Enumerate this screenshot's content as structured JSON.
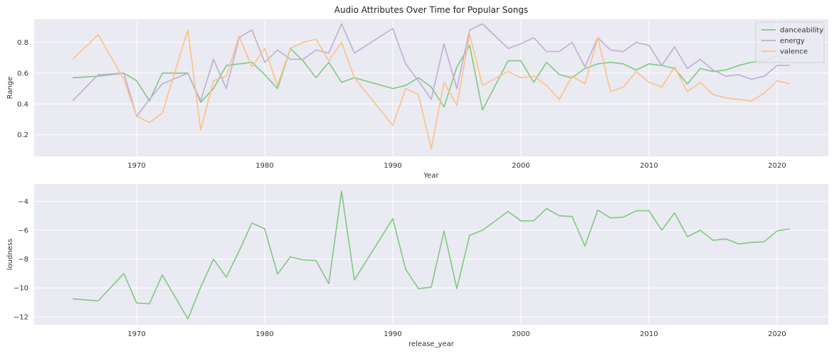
{
  "chart_data": [
    {
      "type": "line",
      "title": "Audio Attributes Over Time for Popular Songs",
      "xlabel": "Year",
      "ylabel": "Range",
      "xlim": [
        1962,
        2024
      ],
      "ylim": [
        0.06,
        0.95
      ],
      "xticks": [
        1970,
        1980,
        1990,
        2000,
        2010,
        2020
      ],
      "yticks": [
        0.2,
        0.4,
        0.6,
        0.8
      ],
      "grid": true,
      "legend": "top-right",
      "x": [
        1965,
        1967,
        1969,
        1970,
        1971,
        1972,
        1974,
        1975,
        1976,
        1977,
        1978,
        1979,
        1980,
        1981,
        1982,
        1983,
        1984,
        1985,
        1986,
        1987,
        1990,
        1991,
        1992,
        1993,
        1994,
        1995,
        1996,
        1997,
        1999,
        2000,
        2001,
        2002,
        2003,
        2004,
        2005,
        2006,
        2007,
        2008,
        2009,
        2010,
        2011,
        2012,
        2013,
        2014,
        2015,
        2016,
        2017,
        2018,
        2019,
        2020,
        2021
      ],
      "series": [
        {
          "name": "danceability",
          "color": "#7fc97f",
          "values": [
            0.57,
            0.58,
            0.6,
            0.55,
            0.42,
            0.6,
            0.6,
            0.41,
            0.5,
            0.65,
            0.66,
            0.67,
            0.59,
            0.5,
            0.76,
            0.68,
            0.57,
            0.67,
            0.54,
            0.57,
            0.5,
            0.52,
            0.57,
            0.51,
            0.38,
            0.64,
            0.78,
            0.36,
            0.68,
            0.68,
            0.54,
            0.67,
            0.59,
            0.57,
            0.63,
            0.66,
            0.67,
            0.66,
            0.62,
            0.66,
            0.65,
            0.63,
            0.53,
            0.63,
            0.61,
            0.62,
            0.65,
            0.67,
            0.68,
            0.71,
            0.69
          ]
        },
        {
          "name": "energy",
          "color": "#beaed4",
          "values": [
            0.42,
            0.59,
            0.6,
            0.32,
            0.43,
            0.53,
            0.6,
            0.42,
            0.69,
            0.5,
            0.83,
            0.88,
            0.67,
            0.75,
            0.69,
            0.69,
            0.75,
            0.73,
            0.92,
            0.73,
            0.89,
            0.66,
            0.55,
            0.43,
            0.79,
            0.5,
            0.88,
            0.92,
            0.76,
            0.79,
            0.83,
            0.74,
            0.74,
            0.8,
            0.64,
            0.83,
            0.75,
            0.74,
            0.8,
            0.78,
            0.65,
            0.77,
            0.63,
            0.69,
            0.62,
            0.58,
            0.59,
            0.56,
            0.58,
            0.65,
            0.65
          ]
        },
        {
          "name": "valence",
          "color": "#fdc086",
          "values": [
            0.69,
            0.85,
            0.56,
            0.32,
            0.28,
            0.34,
            0.88,
            0.23,
            0.55,
            0.58,
            0.84,
            0.64,
            0.76,
            0.52,
            0.76,
            0.8,
            0.82,
            0.68,
            0.8,
            0.57,
            0.26,
            0.5,
            0.46,
            0.11,
            0.54,
            0.39,
            0.85,
            0.52,
            0.61,
            0.57,
            0.58,
            0.52,
            0.43,
            0.58,
            0.53,
            0.83,
            0.48,
            0.51,
            0.61,
            0.54,
            0.51,
            0.64,
            0.48,
            0.54,
            0.46,
            0.44,
            0.43,
            0.42,
            0.47,
            0.55,
            0.53
          ]
        }
      ]
    },
    {
      "type": "line",
      "title": "",
      "xlabel": "release_year",
      "ylabel": "loudness",
      "xlim": [
        1962,
        2024
      ],
      "ylim": [
        -12.55,
        -2.8
      ],
      "xticks": [
        1970,
        1980,
        1990,
        2000,
        2010,
        2020
      ],
      "yticks": [
        -12,
        -10,
        -8,
        -6,
        -4
      ],
      "grid": true,
      "x": [
        1965,
        1967,
        1969,
        1970,
        1971,
        1972,
        1974,
        1975,
        1976,
        1977,
        1978,
        1979,
        1980,
        1981,
        1982,
        1983,
        1984,
        1985,
        1986,
        1987,
        1990,
        1991,
        1992,
        1993,
        1994,
        1995,
        1996,
        1997,
        1999,
        2000,
        2001,
        2002,
        2003,
        2004,
        2005,
        2006,
        2007,
        2008,
        2009,
        2010,
        2011,
        2012,
        2013,
        2014,
        2015,
        2016,
        2017,
        2018,
        2019,
        2020,
        2021
      ],
      "series": [
        {
          "color": "#7fc97f",
          "values": [
            -10.75,
            -10.9,
            -9.0,
            -11.05,
            -11.1,
            -9.1,
            -12.15,
            -9.95,
            -8.0,
            -9.25,
            -7.45,
            -5.5,
            -5.9,
            -9.05,
            -7.85,
            -8.05,
            -8.1,
            -9.7,
            -3.3,
            -9.45,
            -5.2,
            -8.7,
            -10.05,
            -9.95,
            -6.05,
            -10.05,
            -6.35,
            -6.0,
            -4.7,
            -5.35,
            -5.35,
            -4.5,
            -5.0,
            -5.05,
            -7.1,
            -4.6,
            -5.15,
            -5.1,
            -4.65,
            -4.65,
            -6.0,
            -4.8,
            -6.45,
            -6.0,
            -6.7,
            -6.6,
            -6.95,
            -6.85,
            -6.8,
            -6.05,
            -5.9
          ]
        }
      ]
    }
  ]
}
